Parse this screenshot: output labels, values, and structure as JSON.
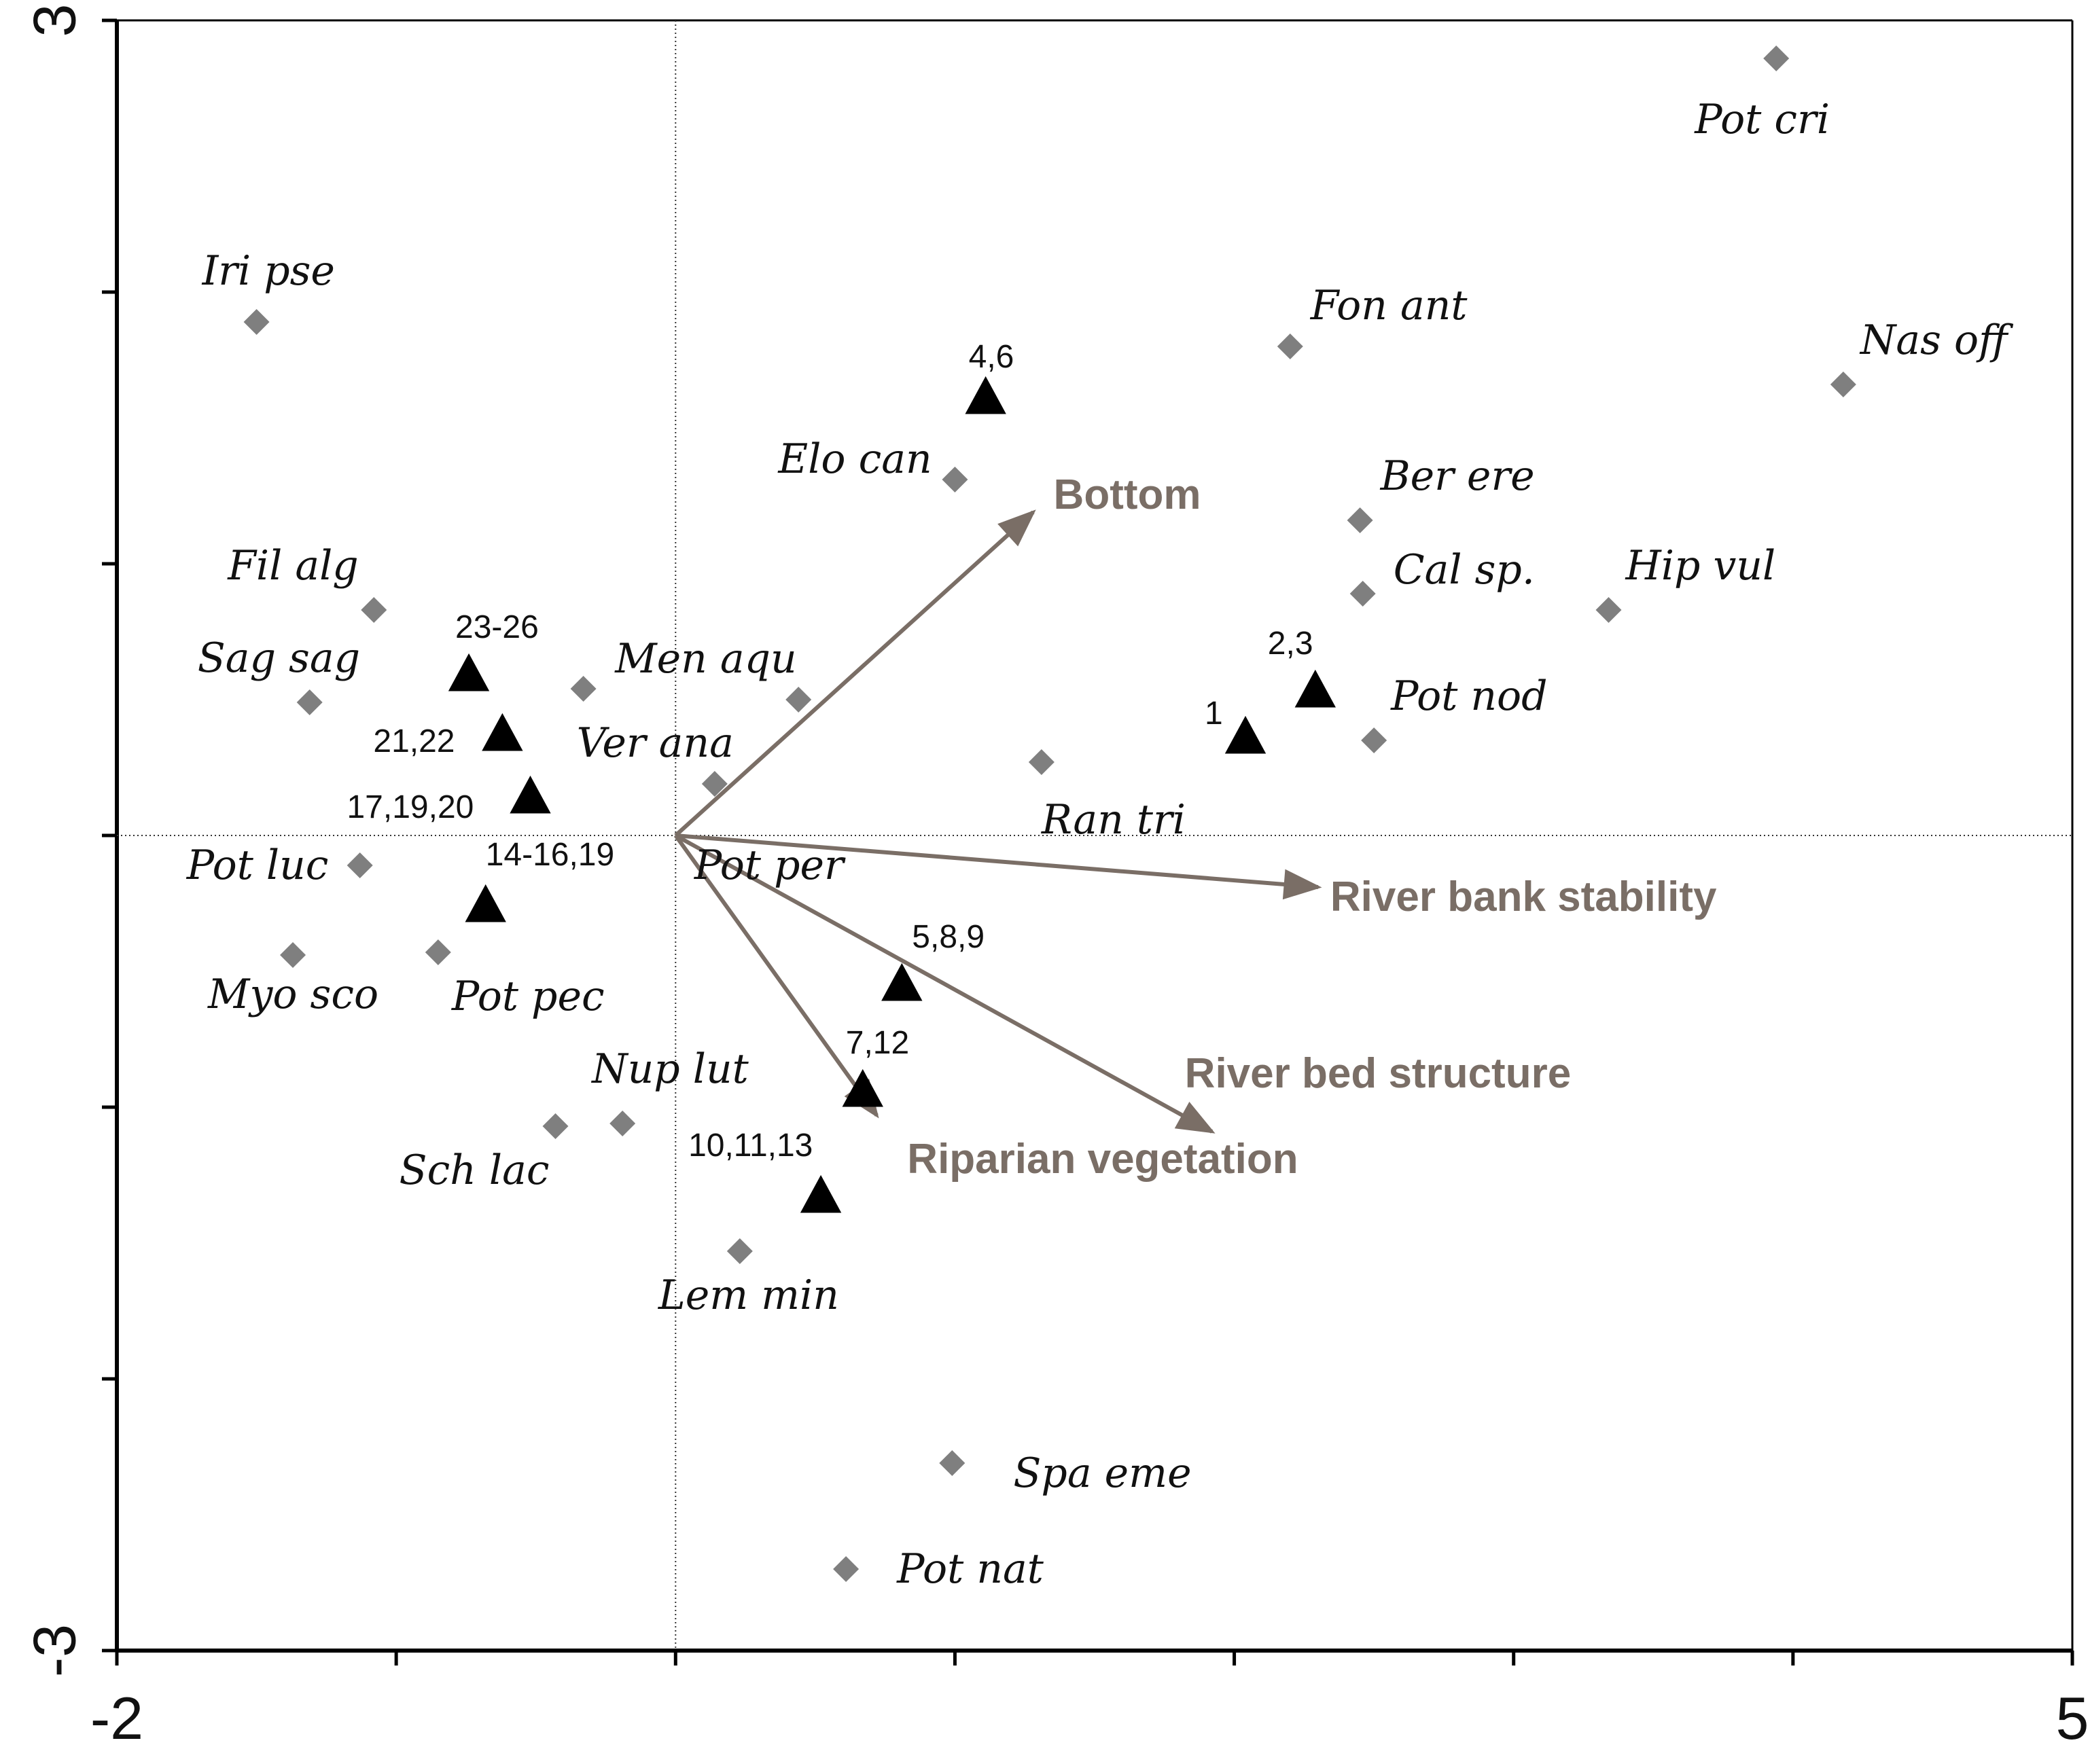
{
  "chart_data": {
    "type": "scatter",
    "title": "",
    "xlabel": "",
    "ylabel": "",
    "xlim": [
      -2,
      5
    ],
    "ylim": [
      -3,
      3
    ],
    "x_tick_labels": [
      {
        "value": -2,
        "label": "-2"
      },
      {
        "value": 5,
        "label": "5"
      }
    ],
    "y_tick_labels": [
      {
        "value": 3,
        "label": "3"
      },
      {
        "value": -3,
        "label": "-3"
      }
    ],
    "x_ticks": [
      -2,
      -1,
      0,
      1,
      2,
      3,
      4,
      5
    ],
    "y_ticks": [
      -3,
      -2,
      -1,
      0,
      1,
      2,
      3
    ],
    "origin_lines": true,
    "colors": {
      "species": "#7f7f7f",
      "sites": "#000000",
      "arrows": "#7a6e66"
    },
    "species": [
      {
        "label": "Pot cri",
        "x": 3.94,
        "y": 2.86
      },
      {
        "label": "Iri pse",
        "x": -1.5,
        "y": 1.89
      },
      {
        "label": "Fon ant",
        "x": 2.2,
        "y": 1.8
      },
      {
        "label": "Nas off",
        "x": 4.18,
        "y": 1.66
      },
      {
        "label": "Elo can",
        "x": 1.0,
        "y": 1.31
      },
      {
        "label": "Ber ere",
        "x": 2.45,
        "y": 1.16
      },
      {
        "label": "Cal sp.",
        "x": 2.46,
        "y": 0.89
      },
      {
        "label": "Hip vul",
        "x": 3.34,
        "y": 0.83
      },
      {
        "label": "Fil alg",
        "x": -1.08,
        "y": 0.83
      },
      {
        "label": "Sag sag",
        "x": -1.31,
        "y": 0.49
      },
      {
        "label": "Ver ana",
        "x": -0.33,
        "y": 0.54
      },
      {
        "label": "Men aqu",
        "x": 0.44,
        "y": 0.5
      },
      {
        "label": "Pot per",
        "x": 0.14,
        "y": 0.19
      },
      {
        "label": "Ran tri",
        "x": 1.31,
        "y": 0.27
      },
      {
        "label": "Pot nod",
        "x": 2.5,
        "y": 0.35
      },
      {
        "label": "Pot luc",
        "x": -1.13,
        "y": -0.11
      },
      {
        "label": "Myo sco",
        "x": -1.37,
        "y": -0.44
      },
      {
        "label": "Pot pec",
        "x": -0.85,
        "y": -0.43
      },
      {
        "label": "Nup lut",
        "x": -0.19,
        "y": -1.06
      },
      {
        "label": "Sch lac",
        "x": -0.43,
        "y": -1.07
      },
      {
        "label": "Lem min",
        "x": 0.23,
        "y": -1.53
      },
      {
        "label": "Spa eme",
        "x": 0.99,
        "y": -2.31
      },
      {
        "label": "Pot nat",
        "x": 0.61,
        "y": -2.7
      }
    ],
    "sites": [
      {
        "label": "4,6",
        "x": 1.11,
        "y": 1.61
      },
      {
        "label": "23-26",
        "x": -0.74,
        "y": 0.59
      },
      {
        "label": "21,22",
        "x": -0.62,
        "y": 0.37
      },
      {
        "label": "17,19,20",
        "x": -0.52,
        "y": 0.14
      },
      {
        "label": "14-16,19",
        "x": -0.68,
        "y": -0.26
      },
      {
        "label": "2,3",
        "x": 2.29,
        "y": 0.53
      },
      {
        "label": "1",
        "x": 2.04,
        "y": 0.36
      },
      {
        "label": "5,8,9",
        "x": 0.81,
        "y": -0.55
      },
      {
        "label": "7,12",
        "x": 0.67,
        "y": -0.94
      },
      {
        "label": "10,11,13",
        "x": 0.52,
        "y": -1.33
      }
    ],
    "env_vectors": [
      {
        "label": "Bottom",
        "x": 1.28,
        "y": 1.19
      },
      {
        "label": "River bank stability",
        "x": 2.3,
        "y": -0.19
      },
      {
        "label": "River bed structure",
        "x": 1.92,
        "y": -1.09
      },
      {
        "label": "Riparian vegetation",
        "x": 0.72,
        "y": -1.03
      }
    ]
  }
}
